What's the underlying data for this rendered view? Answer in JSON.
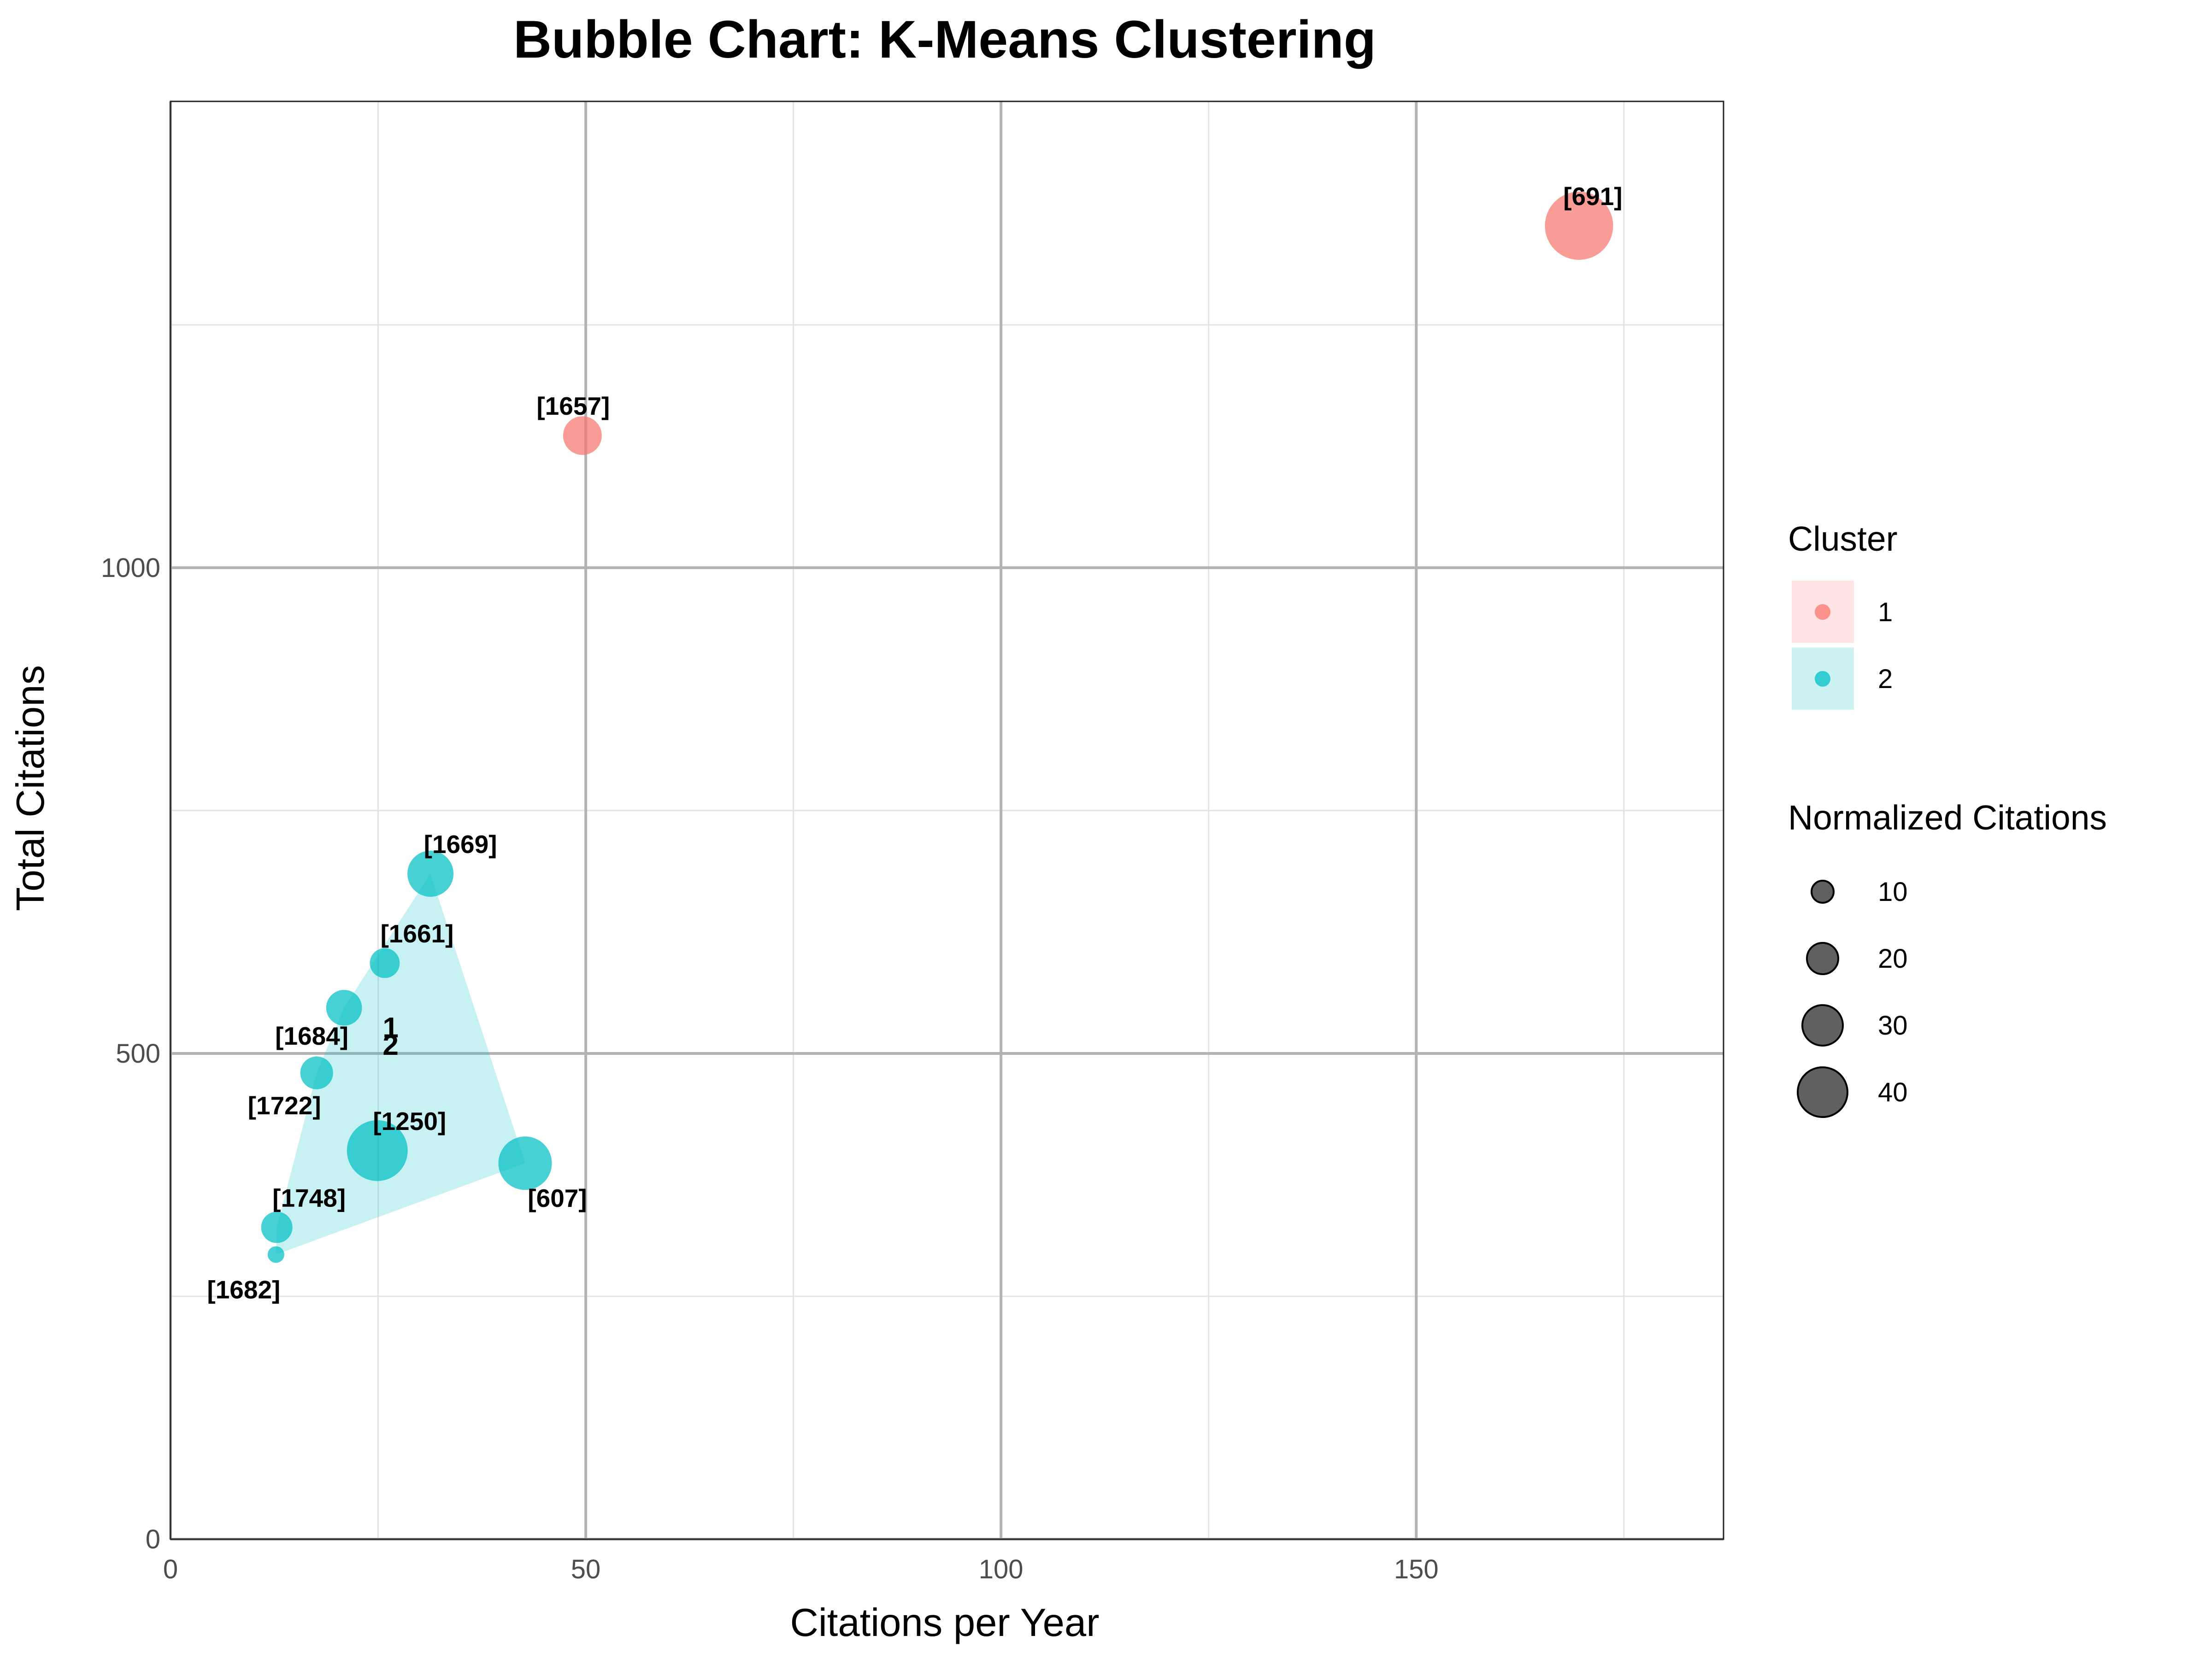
{
  "chart_data": {
    "type": "scatter",
    "title": "Bubble Chart: K-Means Clustering",
    "xlabel": "Citations per Year",
    "ylabel": "Total Citations",
    "xlim": [
      0,
      187
    ],
    "ylim": [
      0,
      1480
    ],
    "x_ticks": [
      0,
      50,
      100,
      150
    ],
    "y_ticks": [
      0,
      500,
      1000
    ],
    "x_minor_ticks": [
      25,
      75,
      125,
      175
    ],
    "y_minor_ticks": [
      250,
      750,
      1250
    ],
    "grid": true,
    "legend_position": "right",
    "legend": {
      "color_title": "Cluster",
      "color_entries": [
        {
          "label": "1",
          "color": "#F8766D"
        },
        {
          "label": "2",
          "color": "#00BFC4"
        }
      ],
      "size_title": "Normalized Citations",
      "size_entries": [
        {
          "label": "10",
          "value": 10
        },
        {
          "label": "20",
          "value": 20
        },
        {
          "label": "30",
          "value": 30
        },
        {
          "label": "40",
          "value": 40
        }
      ]
    },
    "colors": {
      "cluster_1": "#F8766D",
      "cluster_2": "#00BFC4"
    },
    "points": [
      {
        "label": "[691]",
        "x": 169.6,
        "y": 1352,
        "cluster": 1,
        "size": 40
      },
      {
        "label": "[1657]",
        "x": 49.6,
        "y": 1136,
        "cluster": 1,
        "size": 20
      },
      {
        "label": "[1669]",
        "x": 31.3,
        "y": 685,
        "cluster": 2,
        "size": 25
      },
      {
        "label": "[1661]",
        "x": 25.8,
        "y": 593,
        "cluster": 2,
        "size": 14
      },
      {
        "label": "[1684]",
        "x": 20.9,
        "y": 547,
        "cluster": 2,
        "size": 18
      },
      {
        "label": "[1722]",
        "x": 17.6,
        "y": 480,
        "cluster": 2,
        "size": 16
      },
      {
        "label": "[1250]",
        "x": 24.9,
        "y": 400,
        "cluster": 2,
        "size": 35
      },
      {
        "label": "[607]",
        "x": 42.7,
        "y": 387,
        "cluster": 2,
        "size": 30
      },
      {
        "label": "[1748]",
        "x": 12.8,
        "y": 321,
        "cluster": 2,
        "size": 15
      },
      {
        "label": "[1682]",
        "x": 12.7,
        "y": 293,
        "cluster": 2,
        "size": 5
      }
    ],
    "centroid_labels": [
      {
        "label": "1",
        "x": 26.5,
        "y": 526
      },
      {
        "label": "2",
        "x": 26.5,
        "y": 508
      }
    ]
  }
}
